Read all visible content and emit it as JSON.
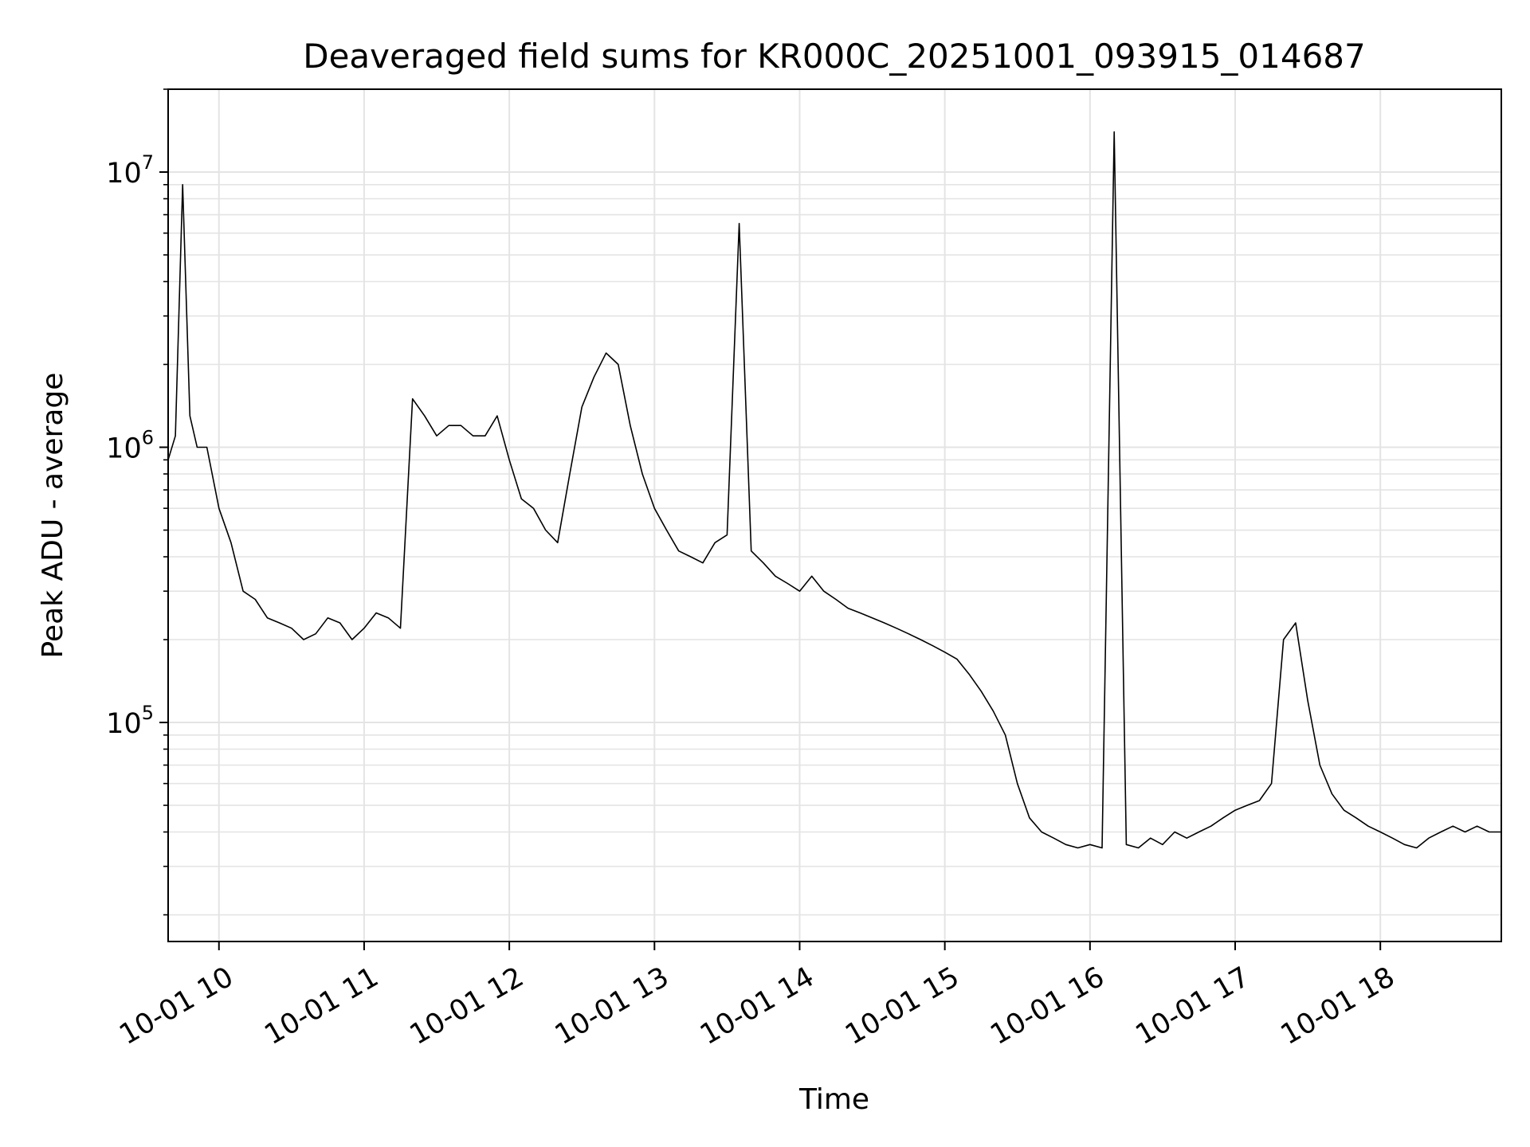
{
  "chart_data": {
    "type": "line",
    "title": "Deaveraged field sums for KR000C_20251001_093915_014687",
    "xlabel": "Time",
    "ylabel": "Peak ADU - average",
    "yscale": "log",
    "ylim": [
      16000,
      20000000
    ],
    "xlim": [
      "2025-10-01T09:39:00",
      "2025-10-01T18:50:00"
    ],
    "grid": true,
    "line_color": "#000000",
    "x_ticks": [
      {
        "value": "2025-10-01T10:00",
        "label": "10-01 10"
      },
      {
        "value": "2025-10-01T11:00",
        "label": "10-01 11"
      },
      {
        "value": "2025-10-01T12:00",
        "label": "10-01 12"
      },
      {
        "value": "2025-10-01T13:00",
        "label": "10-01 13"
      },
      {
        "value": "2025-10-01T14:00",
        "label": "10-01 14"
      },
      {
        "value": "2025-10-01T15:00",
        "label": "10-01 15"
      },
      {
        "value": "2025-10-01T16:00",
        "label": "10-01 16"
      },
      {
        "value": "2025-10-01T17:00",
        "label": "10-01 17"
      },
      {
        "value": "2025-10-01T18:00",
        "label": "10-01 18"
      }
    ],
    "y_ticks": [
      {
        "value": 100000,
        "base": "10",
        "exp": "5"
      },
      {
        "value": 1000000,
        "base": "10",
        "exp": "6"
      },
      {
        "value": 10000000,
        "base": "10",
        "exp": "7"
      }
    ],
    "series": [
      {
        "x": [
          "2025-10-01T09:39",
          "2025-10-01T09:42",
          "2025-10-01T09:45",
          "2025-10-01T09:48",
          "2025-10-01T09:51",
          "2025-10-01T09:55",
          "2025-10-01T10:00",
          "2025-10-01T10:05",
          "2025-10-01T10:10",
          "2025-10-01T10:15",
          "2025-10-01T10:20",
          "2025-10-01T10:25",
          "2025-10-01T10:30",
          "2025-10-01T10:35",
          "2025-10-01T10:40",
          "2025-10-01T10:45",
          "2025-10-01T10:50",
          "2025-10-01T10:55",
          "2025-10-01T11:00",
          "2025-10-01T11:05",
          "2025-10-01T11:10",
          "2025-10-01T11:15",
          "2025-10-01T11:20",
          "2025-10-01T11:25",
          "2025-10-01T11:30",
          "2025-10-01T11:35",
          "2025-10-01T11:40",
          "2025-10-01T11:45",
          "2025-10-01T11:50",
          "2025-10-01T11:55",
          "2025-10-01T12:00",
          "2025-10-01T12:05",
          "2025-10-01T12:10",
          "2025-10-01T12:15",
          "2025-10-01T12:20",
          "2025-10-01T12:25",
          "2025-10-01T12:30",
          "2025-10-01T12:35",
          "2025-10-01T12:40",
          "2025-10-01T12:45",
          "2025-10-01T12:50",
          "2025-10-01T12:55",
          "2025-10-01T13:00",
          "2025-10-01T13:05",
          "2025-10-01T13:10",
          "2025-10-01T13:15",
          "2025-10-01T13:20",
          "2025-10-01T13:25",
          "2025-10-01T13:30",
          "2025-10-01T13:35",
          "2025-10-01T13:40",
          "2025-10-01T13:45",
          "2025-10-01T13:50",
          "2025-10-01T13:55",
          "2025-10-01T14:00",
          "2025-10-01T14:05",
          "2025-10-01T14:10",
          "2025-10-01T14:15",
          "2025-10-01T14:20",
          "2025-10-01T14:25",
          "2025-10-01T14:30",
          "2025-10-01T14:35",
          "2025-10-01T14:40",
          "2025-10-01T14:45",
          "2025-10-01T14:50",
          "2025-10-01T14:55",
          "2025-10-01T15:00",
          "2025-10-01T15:05",
          "2025-10-01T15:10",
          "2025-10-01T15:15",
          "2025-10-01T15:20",
          "2025-10-01T15:25",
          "2025-10-01T15:30",
          "2025-10-01T15:35",
          "2025-10-01T15:40",
          "2025-10-01T15:45",
          "2025-10-01T15:50",
          "2025-10-01T15:55",
          "2025-10-01T16:00",
          "2025-10-01T16:05",
          "2025-10-01T16:10",
          "2025-10-01T16:15",
          "2025-10-01T16:20",
          "2025-10-01T16:25",
          "2025-10-01T16:30",
          "2025-10-01T16:35",
          "2025-10-01T16:40",
          "2025-10-01T16:45",
          "2025-10-01T16:50",
          "2025-10-01T16:55",
          "2025-10-01T17:00",
          "2025-10-01T17:05",
          "2025-10-01T17:10",
          "2025-10-01T17:15",
          "2025-10-01T17:20",
          "2025-10-01T17:25",
          "2025-10-01T17:30",
          "2025-10-01T17:35",
          "2025-10-01T17:40",
          "2025-10-01T17:45",
          "2025-10-01T17:50",
          "2025-10-01T17:55",
          "2025-10-01T18:00",
          "2025-10-01T18:05",
          "2025-10-01T18:10",
          "2025-10-01T18:15",
          "2025-10-01T18:20",
          "2025-10-01T18:25",
          "2025-10-01T18:30",
          "2025-10-01T18:35",
          "2025-10-01T18:40",
          "2025-10-01T18:45",
          "2025-10-01T18:50"
        ],
        "y": [
          900000,
          1100000,
          9000000,
          1300000,
          1000000,
          1000000,
          600000,
          450000,
          300000,
          280000,
          240000,
          230000,
          220000,
          200000,
          210000,
          240000,
          230000,
          200000,
          220000,
          250000,
          240000,
          220000,
          1500000,
          1300000,
          1100000,
          1200000,
          1200000,
          1100000,
          1100000,
          1300000,
          900000,
          650000,
          600000,
          500000,
          450000,
          800000,
          1400000,
          1800000,
          2200000,
          2000000,
          1200000,
          800000,
          600000,
          500000,
          420000,
          400000,
          380000,
          450000,
          480000,
          6500000,
          420000,
          380000,
          340000,
          320000,
          300000,
          340000,
          300000,
          280000,
          260000,
          250000,
          240000,
          230000,
          220000,
          210000,
          200000,
          190000,
          180000,
          170000,
          150000,
          130000,
          110000,
          90000,
          60000,
          45000,
          40000,
          38000,
          36000,
          35000,
          36000,
          35000,
          14000000,
          36000,
          35000,
          38000,
          36000,
          40000,
          38000,
          40000,
          42000,
          45000,
          48000,
          50000,
          52000,
          60000,
          200000,
          230000,
          120000,
          70000,
          55000,
          48000,
          45000,
          42000,
          40000,
          38000,
          36000,
          35000,
          38000,
          40000,
          42000,
          40000,
          42000,
          40000,
          40000
        ]
      }
    ]
  }
}
